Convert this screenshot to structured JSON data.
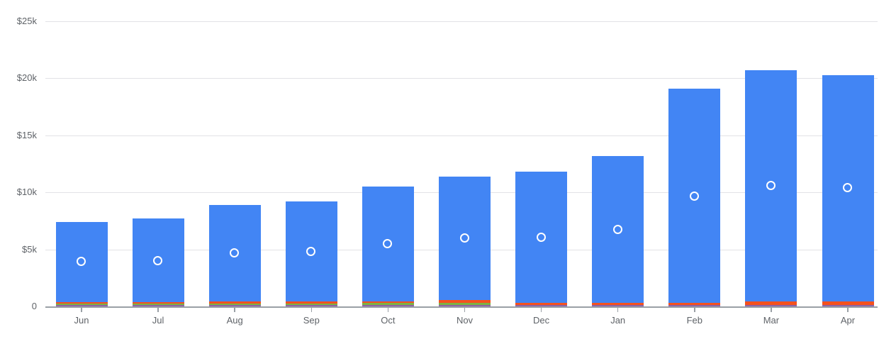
{
  "chart_data": {
    "type": "bar",
    "subtype": "stacked-bars-with-scatter-overlay",
    "title": "",
    "categories": [
      "Jun",
      "Jul",
      "Aug",
      "Sep",
      "Oct",
      "Nov",
      "Dec",
      "Jan",
      "Feb",
      "Mar",
      "Apr"
    ],
    "series": [
      {
        "name": "purple-segment",
        "color": "#8e63a5",
        "values": [
          100,
          100,
          100,
          100,
          100,
          120,
          100,
          100,
          100,
          100,
          100
        ]
      },
      {
        "name": "green-segment",
        "color": "#7cb342",
        "values": [
          150,
          150,
          170,
          170,
          200,
          200,
          0,
          0,
          0,
          0,
          0
        ]
      },
      {
        "name": "orange-segment",
        "color": "#f4511e",
        "values": [
          120,
          120,
          180,
          180,
          150,
          220,
          200,
          200,
          200,
          350,
          350
        ]
      },
      {
        "name": "blue-segment",
        "color": "#4285f4",
        "values": [
          7030,
          7330,
          8450,
          8750,
          10050,
          10860,
          11500,
          12900,
          18800,
          20250,
          19850
        ]
      }
    ],
    "bar_totals": [
      7400,
      7700,
      8900,
      9200,
      10500,
      11400,
      11800,
      13200,
      19100,
      20700,
      20300
    ],
    "scatter_overlay": {
      "name": "white-ring-dots",
      "marker": "open-circle-white",
      "values": [
        3900,
        4000,
        4650,
        4800,
        5500,
        6000,
        6050,
        6700,
        9650,
        10600,
        10400
      ]
    },
    "y_axis": {
      "tick_labels": [
        "$25k",
        "$20k",
        "$15k",
        "$10k",
        "$5k",
        "0"
      ],
      "tick_values": [
        25000,
        20000,
        15000,
        10000,
        5000,
        0
      ],
      "ylim": [
        0,
        25000
      ],
      "grid": true
    },
    "x_axis": {
      "labels": [
        "Jun",
        "Jul",
        "Aug",
        "Sep",
        "Oct",
        "Nov",
        "Dec",
        "Jan",
        "Feb",
        "Mar",
        "Apr"
      ]
    },
    "legend": "none"
  },
  "style": {
    "background": "#ffffff",
    "grid_color": "#e2e2e6",
    "axis_color": "#9aa0a6",
    "label_color": "#5f6368",
    "bar_blue": "#4285f4",
    "bar_orange": "#f4511e",
    "bar_green": "#7cb342",
    "bar_purple": "#8e63a5",
    "dot_ring": "#ffffff"
  }
}
